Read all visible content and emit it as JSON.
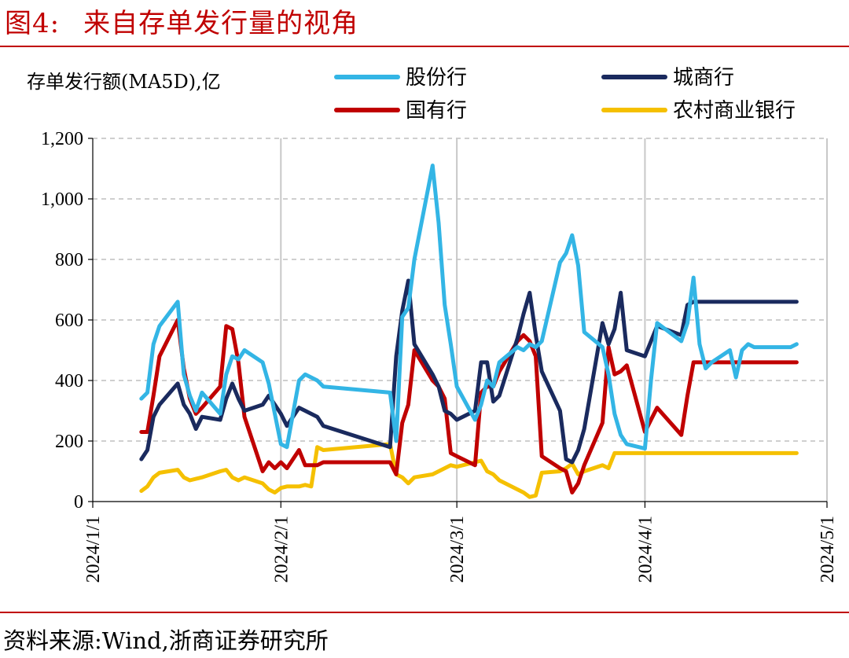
{
  "figure": {
    "label": "图4:",
    "title": "来自存单发行量的视角",
    "source": "资料来源:Wind,浙商证券研究所"
  },
  "chart_data": {
    "type": "line",
    "unit_label": "存单发行额(MA5D),亿",
    "ylim": [
      0,
      1200
    ],
    "y_ticks": [
      0,
      200,
      400,
      600,
      800,
      1000,
      1200
    ],
    "y_tick_labels": [
      "0",
      "200",
      "400",
      "600",
      "800",
      "1,000",
      "1,200"
    ],
    "x_ticks": [
      "2024-01-01",
      "2024-02-01",
      "2024-03-01",
      "2024-04-01",
      "2024-05-01"
    ],
    "x_tick_labels": [
      "2024/1/1",
      "2024/2/1",
      "2024/3/1",
      "2024/4/1",
      "2024/5/1"
    ],
    "xlim": [
      "2024-01-01",
      "2024-05-01"
    ],
    "grid": "vertical dashed at month ticks, horizontal dashed at y ticks",
    "legend_position": "top",
    "series": [
      {
        "name": "股份行",
        "color": "#33b5e5",
        "x": [
          "2024-01-09",
          "2024-01-10",
          "2024-01-11",
          "2024-01-12",
          "2024-01-15",
          "2024-01-16",
          "2024-01-17",
          "2024-01-18",
          "2024-01-19",
          "2024-01-22",
          "2024-01-23",
          "2024-01-24",
          "2024-01-25",
          "2024-01-26",
          "2024-01-29",
          "2024-01-30",
          "2024-01-31",
          "2024-02-01",
          "2024-02-02",
          "2024-02-04",
          "2024-02-05",
          "2024-02-06",
          "2024-02-07",
          "2024-02-08",
          "2024-02-19",
          "2024-02-20",
          "2024-02-21",
          "2024-02-22",
          "2024-02-23",
          "2024-02-26",
          "2024-02-27",
          "2024-02-28",
          "2024-02-29",
          "2024-03-01",
          "2024-03-04",
          "2024-03-05",
          "2024-03-06",
          "2024-03-07",
          "2024-03-08",
          "2024-03-11",
          "2024-03-12",
          "2024-03-13",
          "2024-03-14",
          "2024-03-15",
          "2024-03-18",
          "2024-03-19",
          "2024-03-20",
          "2024-03-21",
          "2024-03-22",
          "2024-03-25",
          "2024-03-26",
          "2024-03-27",
          "2024-03-28",
          "2024-03-29",
          "2024-04-01",
          "2024-04-02",
          "2024-04-03",
          "2024-04-07",
          "2024-04-08",
          "2024-04-09",
          "2024-04-10",
          "2024-04-11",
          "2024-04-12",
          "2024-04-15",
          "2024-04-16",
          "2024-04-17",
          "2024-04-18",
          "2024-04-19",
          "2024-04-22",
          "2024-04-23",
          "2024-04-24",
          "2024-04-25",
          "2024-04-26"
        ],
        "values": [
          340,
          360,
          520,
          580,
          660,
          420,
          350,
          300,
          360,
          290,
          420,
          480,
          470,
          500,
          460,
          390,
          290,
          190,
          180,
          400,
          420,
          410,
          400,
          380,
          360,
          200,
          610,
          640,
          800,
          1110,
          920,
          650,
          520,
          380,
          270,
          320,
          400,
          380,
          460,
          510,
          500,
          520,
          510,
          530,
          790,
          820,
          880,
          780,
          560,
          510,
          420,
          290,
          220,
          190,
          175,
          400,
          590,
          530,
          590,
          740,
          520,
          440,
          460,
          500,
          410,
          500,
          520,
          510,
          510,
          510,
          510,
          510,
          520
        ],
        "sample_note": "values are approximate readings"
      },
      {
        "name": "城商行",
        "color": "#1a2a5e",
        "values": [
          140,
          170,
          280,
          320,
          390,
          320,
          290,
          240,
          280,
          270,
          340,
          390,
          340,
          300,
          320,
          350,
          320,
          290,
          250,
          310,
          300,
          290,
          280,
          250,
          180,
          480,
          630,
          730,
          520,
          420,
          380,
          300,
          290,
          270,
          300,
          460,
          460,
          330,
          350,
          540,
          620,
          690,
          550,
          430,
          300,
          140,
          130,
          170,
          240,
          590,
          520,
          570,
          690,
          500,
          480,
          530,
          580,
          550,
          650,
          660,
          660,
          660,
          660,
          660,
          660,
          660,
          660,
          660,
          660,
          660,
          660,
          660,
          660
        ]
      },
      {
        "name": "国有行",
        "color": "#c00000",
        "values": [
          230,
          230,
          350,
          480,
          600,
          440,
          340,
          290,
          310,
          380,
          580,
          570,
          460,
          280,
          100,
          130,
          110,
          130,
          110,
          170,
          120,
          120,
          120,
          130,
          130,
          90,
          260,
          320,
          500,
          400,
          380,
          340,
          160,
          150,
          120,
          360,
          380,
          380,
          430,
          530,
          550,
          530,
          480,
          150,
          110,
          100,
          30,
          60,
          120,
          260,
          510,
          420,
          430,
          450,
          230,
          270,
          310,
          220,
          350,
          460,
          460,
          460,
          460,
          460,
          460,
          460,
          460,
          460,
          460,
          460,
          460,
          460,
          460
        ]
      },
      {
        "name": "农村商业银行",
        "color": "#f5c000",
        "values": [
          35,
          50,
          80,
          95,
          105,
          80,
          70,
          75,
          80,
          100,
          105,
          80,
          70,
          80,
          60,
          40,
          30,
          45,
          50,
          50,
          55,
          50,
          180,
          170,
          190,
          90,
          80,
          60,
          80,
          90,
          100,
          110,
          120,
          115,
          130,
          135,
          100,
          90,
          70,
          40,
          30,
          15,
          20,
          95,
          100,
          110,
          125,
          90,
          100,
          120,
          110,
          160,
          160,
          160,
          160,
          160,
          160,
          160,
          160,
          160,
          160,
          160,
          160,
          160,
          160,
          160,
          160,
          160,
          160,
          160,
          160,
          160,
          160
        ]
      }
    ]
  }
}
